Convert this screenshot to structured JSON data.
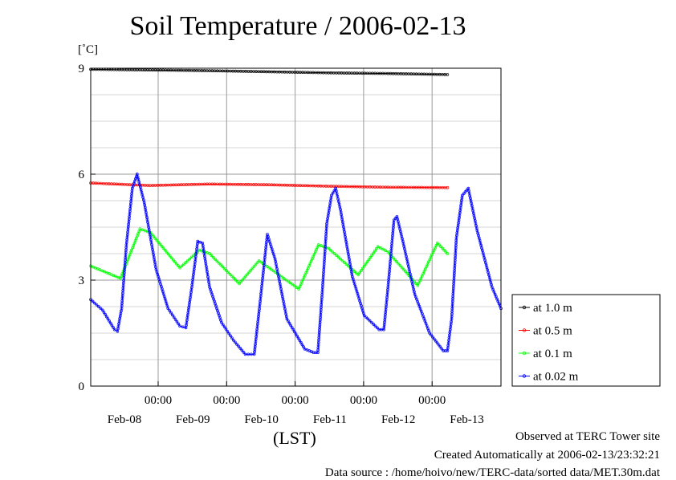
{
  "chart_data": {
    "type": "line",
    "title": "Soil Temperature / 2006-02-13",
    "ylabel": "[˚C]",
    "xlabel": "(LST)",
    "ylim": [
      0,
      9
    ],
    "yticks": [
      "0",
      "3",
      "6",
      "9"
    ],
    "xlim_days": [
      0,
      6
    ],
    "xtick_time_label": "00:00",
    "xtick_dates": [
      "Feb-08",
      "Feb-09",
      "Feb-10",
      "Feb-11",
      "Feb-12",
      "Feb-13"
    ],
    "grid": true,
    "legend_position": "right",
    "series": [
      {
        "name": "at 1.0 m",
        "color": "#000000",
        "points": [
          [
            0.0,
            8.97
          ],
          [
            1.0,
            8.95
          ],
          [
            2.0,
            8.93
          ],
          [
            3.0,
            8.9
          ],
          [
            4.0,
            8.87
          ],
          [
            5.0,
            8.85
          ],
          [
            6.0,
            8.82
          ]
        ]
      },
      {
        "name": "at 0.5 m",
        "color": "#ff0000",
        "points": [
          [
            0.0,
            5.75
          ],
          [
            0.7,
            5.7
          ],
          [
            1.0,
            5.68
          ],
          [
            2.0,
            5.72
          ],
          [
            3.0,
            5.7
          ],
          [
            4.0,
            5.66
          ],
          [
            5.0,
            5.63
          ],
          [
            6.0,
            5.62
          ]
        ]
      },
      {
        "name": "at 0.1 m",
        "color": "#00ff00",
        "points": [
          [
            0.0,
            3.4
          ],
          [
            0.5,
            3.05
          ],
          [
            0.83,
            4.45
          ],
          [
            1.0,
            4.35
          ],
          [
            1.5,
            3.35
          ],
          [
            1.83,
            3.85
          ],
          [
            2.0,
            3.75
          ],
          [
            2.5,
            2.9
          ],
          [
            2.83,
            3.55
          ],
          [
            3.0,
            3.35
          ],
          [
            3.5,
            2.75
          ],
          [
            3.83,
            4.0
          ],
          [
            4.0,
            3.9
          ],
          [
            4.5,
            3.15
          ],
          [
            4.83,
            3.95
          ],
          [
            5.0,
            3.8
          ],
          [
            5.5,
            2.85
          ],
          [
            5.83,
            4.05
          ],
          [
            6.0,
            3.75
          ]
        ]
      },
      {
        "name": "at 0.02 m",
        "color": "#0000ff",
        "points": [
          [
            0.0,
            2.45
          ],
          [
            0.2,
            2.15
          ],
          [
            0.4,
            1.6
          ],
          [
            0.45,
            1.55
          ],
          [
            0.52,
            2.2
          ],
          [
            0.6,
            4.0
          ],
          [
            0.7,
            5.6
          ],
          [
            0.78,
            6.0
          ],
          [
            0.9,
            5.2
          ],
          [
            1.1,
            3.3
          ],
          [
            1.3,
            2.2
          ],
          [
            1.5,
            1.7
          ],
          [
            1.6,
            1.65
          ],
          [
            1.7,
            2.8
          ],
          [
            1.8,
            4.1
          ],
          [
            1.88,
            4.05
          ],
          [
            2.0,
            2.8
          ],
          [
            2.2,
            1.8
          ],
          [
            2.4,
            1.3
          ],
          [
            2.6,
            0.9
          ],
          [
            2.75,
            0.9
          ],
          [
            2.85,
            2.4
          ],
          [
            2.97,
            4.3
          ],
          [
            3.1,
            3.6
          ],
          [
            3.3,
            1.9
          ],
          [
            3.6,
            1.05
          ],
          [
            3.75,
            0.95
          ],
          [
            3.82,
            0.95
          ],
          [
            3.9,
            2.8
          ],
          [
            3.97,
            4.6
          ],
          [
            4.05,
            5.4
          ],
          [
            4.12,
            5.6
          ],
          [
            4.2,
            5.0
          ],
          [
            4.4,
            3.1
          ],
          [
            4.6,
            2.0
          ],
          [
            4.85,
            1.6
          ],
          [
            4.93,
            1.6
          ],
          [
            5.0,
            2.8
          ],
          [
            5.1,
            4.7
          ],
          [
            5.15,
            4.8
          ],
          [
            5.25,
            4.1
          ],
          [
            5.45,
            2.6
          ],
          [
            5.7,
            1.5
          ],
          [
            5.93,
            1.0
          ],
          [
            6.0,
            1.0
          ],
          [
            6.07,
            1.9
          ],
          [
            6.15,
            4.2
          ],
          [
            6.25,
            5.4
          ],
          [
            6.35,
            5.6
          ],
          [
            6.5,
            4.4
          ],
          [
            6.75,
            2.8
          ],
          [
            6.9,
            2.2
          ]
        ]
      }
    ]
  },
  "footer": {
    "line1": "Observed at TERC Tower site",
    "line2": "Created Automatically at 2006-02-13/23:32:21",
    "line3": "Data source : /home/hoivo/new/TERC-data/sorted  data/MET.30m.dat"
  }
}
